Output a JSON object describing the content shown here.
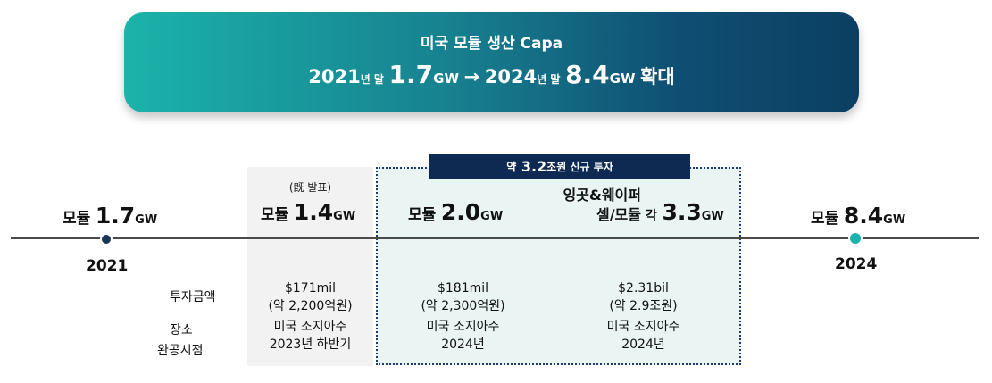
{
  "banner": {
    "title": "미국 모듈 생산 Capa",
    "year_start": "2021",
    "year_end_suffix": "년 말",
    "capa_start": "1.7",
    "unit": "GW",
    "arrow": "→",
    "year_end": "2024",
    "capa_end": "8.4",
    "verb": "확대"
  },
  "timeline": {
    "start": {
      "word": "모듈",
      "value": "1.7",
      "unit": "GW",
      "year": "2021"
    },
    "end": {
      "word": "모듈",
      "value": "8.4",
      "unit": "GW",
      "year": "2024"
    }
  },
  "existing": {
    "note": "(旣 발표)",
    "word": "모듈",
    "value": "1.4",
    "unit": "GW",
    "invest": "$171mil",
    "invest_krw": "(약 2,200억원)",
    "location": "미국 조지아주",
    "completion": "2023년 하반기"
  },
  "new_investment": {
    "header_prefix": "약",
    "header_value": "3.2",
    "header_suffix": "조원 신규 투자",
    "module": {
      "word": "모듈",
      "value": "2.0",
      "unit": "GW",
      "invest": "$181mil",
      "invest_krw": "(약 2,300억원)",
      "location": "미국 조지아주",
      "completion": "2024년"
    },
    "ingot": {
      "line1": "잉곳&웨이퍼",
      "line2": "셀/모듈",
      "each": "각",
      "value": "3.3",
      "unit": "GW",
      "invest": "$2.31bil",
      "invest_krw": "(약 2.9조원)",
      "location": "미국 조지아주",
      "completion": "2024년"
    }
  },
  "row_labels": {
    "invest": "투자금액",
    "location": "장소",
    "completion": "완공시점"
  }
}
